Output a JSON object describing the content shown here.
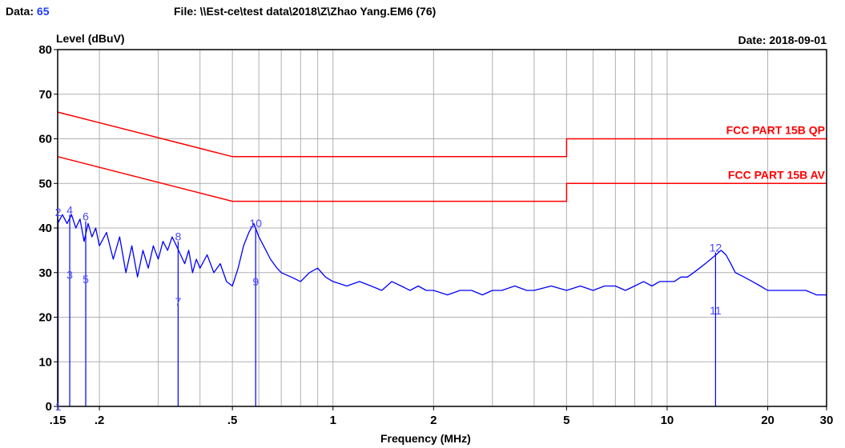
{
  "header": {
    "data_label": "Data:",
    "data_value": "65",
    "file_text": "File: \\\\Est-ce\\test data\\2018\\Z\\Zhao Yang.EM6  (76)",
    "date_text": "Date: 2018-09-01"
  },
  "colors": {
    "trace": "#0000ff",
    "limit": "#ff0000",
    "marker": "#0000ff",
    "marker_label": "#4848ff",
    "grid": "#b0b0b0"
  },
  "chart_data": {
    "type": "line",
    "xlabel": "Frequency (MHz)",
    "ylabel": "Level (dBuV)",
    "xscale": "log",
    "xlim": [
      0.15,
      30
    ],
    "ylim": [
      0,
      80
    ],
    "x_ticks": [
      {
        "value": 0.15,
        "label": ".15"
      },
      {
        "value": 0.2,
        "label": ".2"
      },
      {
        "value": 0.5,
        "label": ".5"
      },
      {
        "value": 1,
        "label": "1"
      },
      {
        "value": 2,
        "label": "2"
      },
      {
        "value": 5,
        "label": "5"
      },
      {
        "value": 10,
        "label": "10"
      },
      {
        "value": 20,
        "label": "20"
      },
      {
        "value": 30,
        "label": "30"
      }
    ],
    "y_ticks": [
      0,
      10,
      20,
      30,
      40,
      50,
      60,
      70,
      80
    ],
    "grid": true,
    "limits": [
      {
        "name": "FCC PART 15B QP",
        "points": [
          [
            0.15,
            66
          ],
          [
            0.5,
            56
          ],
          [
            5,
            56
          ],
          [
            5,
            60
          ],
          [
            30,
            60
          ]
        ]
      },
      {
        "name": "FCC PART 15B AV",
        "points": [
          [
            0.15,
            56
          ],
          [
            0.5,
            46
          ],
          [
            5,
            46
          ],
          [
            5,
            50
          ],
          [
            30,
            50
          ]
        ]
      }
    ],
    "trace": {
      "x": [
        0.15,
        0.155,
        0.16,
        0.165,
        0.17,
        0.175,
        0.18,
        0.185,
        0.19,
        0.195,
        0.2,
        0.21,
        0.22,
        0.23,
        0.24,
        0.25,
        0.26,
        0.27,
        0.28,
        0.29,
        0.3,
        0.31,
        0.32,
        0.33,
        0.34,
        0.35,
        0.36,
        0.37,
        0.38,
        0.39,
        0.4,
        0.42,
        0.44,
        0.46,
        0.48,
        0.5,
        0.52,
        0.54,
        0.56,
        0.58,
        0.6,
        0.62,
        0.65,
        0.68,
        0.7,
        0.75,
        0.8,
        0.85,
        0.9,
        0.95,
        1.0,
        1.1,
        1.2,
        1.3,
        1.4,
        1.5,
        1.6,
        1.7,
        1.8,
        1.9,
        2.0,
        2.2,
        2.4,
        2.6,
        2.8,
        3.0,
        3.2,
        3.5,
        3.8,
        4.0,
        4.5,
        5.0,
        5.5,
        6.0,
        6.5,
        7.0,
        7.5,
        8.0,
        8.5,
        9.0,
        9.5,
        10.0,
        10.5,
        11.0,
        11.5,
        12.0,
        12.5,
        13.0,
        13.5,
        14.0,
        14.5,
        15.0,
        15.5,
        16.0,
        17.0,
        18.0,
        19.0,
        20.0,
        22.0,
        24.0,
        26.0,
        28.0,
        30.0
      ],
      "y": [
        41,
        43,
        41,
        43,
        40,
        42,
        37,
        41,
        38,
        40,
        36,
        39,
        33,
        38,
        30,
        36,
        29,
        35,
        31,
        36,
        33,
        37,
        35,
        38,
        36,
        34,
        32,
        35,
        30,
        33,
        31,
        34,
        30,
        32,
        28,
        27,
        31,
        36,
        39,
        41,
        38,
        36,
        33,
        31,
        30,
        29,
        28,
        30,
        31,
        29,
        28,
        27,
        28,
        27,
        26,
        28,
        27,
        26,
        27,
        26,
        26,
        25,
        26,
        26,
        25,
        26,
        26,
        27,
        26,
        26,
        27,
        26,
        27,
        26,
        27,
        27,
        26,
        27,
        28,
        27,
        28,
        28,
        28,
        29,
        29,
        30,
        31,
        32,
        33,
        34,
        35,
        34,
        32,
        30,
        29,
        28,
        27,
        26,
        26,
        26,
        26,
        25,
        25
      ]
    },
    "markers": [
      {
        "id": "1",
        "freq": 0.1505,
        "level": 0,
        "peak": 42
      },
      {
        "id": "2",
        "freq": 0.1505,
        "level": 0,
        "peak": 42.5
      },
      {
        "id": "3",
        "freq": 0.163,
        "level": 29.5,
        "peak": 43
      },
      {
        "id": "4",
        "freq": 0.163,
        "level": 29.5,
        "peak": 43
      },
      {
        "id": "5",
        "freq": 0.182,
        "level": 28.5,
        "peak": 41.5
      },
      {
        "id": "6",
        "freq": 0.182,
        "level": 28.5,
        "peak": 41.5
      },
      {
        "id": "7",
        "freq": 0.344,
        "level": 23.5,
        "peak": 37
      },
      {
        "id": "8",
        "freq": 0.344,
        "level": 23.5,
        "peak": 37
      },
      {
        "id": "9",
        "freq": 0.587,
        "level": 28,
        "peak": 40
      },
      {
        "id": "10",
        "freq": 0.587,
        "level": 28,
        "peak": 40
      },
      {
        "id": "11",
        "freq": 13.96,
        "level": 21.5,
        "peak": 34.5
      },
      {
        "id": "12",
        "freq": 13.96,
        "level": 21.5,
        "peak": 34.5
      }
    ]
  }
}
